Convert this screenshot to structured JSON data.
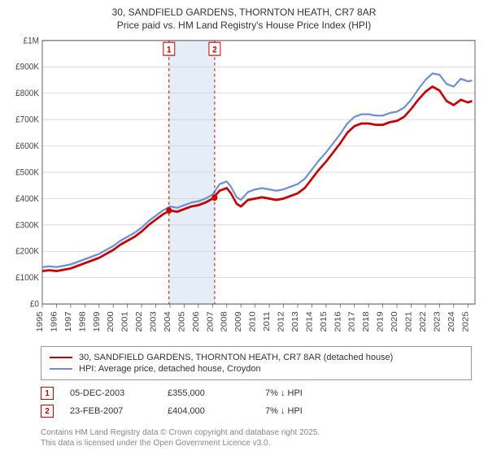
{
  "title_line1": "30, SANDFIELD GARDENS, THORNTON HEATH, CR7 8AR",
  "title_line2": "Price paid vs. HM Land Registry's House Price Index (HPI)",
  "chart": {
    "type": "line",
    "background_color": "#ffffff",
    "grid_color": "#cccccc",
    "border_color": "#666666",
    "x_min": 1995,
    "x_max": 2025.5,
    "y_min": 0,
    "y_max": 1000000,
    "y_ticks": [
      0,
      100000,
      200000,
      300000,
      400000,
      500000,
      600000,
      700000,
      800000,
      900000,
      1000000
    ],
    "y_tick_labels": [
      "£0",
      "£100K",
      "£200K",
      "£300K",
      "£400K",
      "£500K",
      "£600K",
      "£700K",
      "£800K",
      "£900K",
      "£1M"
    ],
    "x_ticks": [
      1995,
      1996,
      1997,
      1998,
      1999,
      2000,
      2001,
      2002,
      2003,
      2004,
      2005,
      2006,
      2007,
      2008,
      2009,
      2010,
      2011,
      2012,
      2013,
      2014,
      2015,
      2016,
      2017,
      2018,
      2019,
      2020,
      2021,
      2022,
      2023,
      2024,
      2025
    ],
    "highlight_band": {
      "x_start": 2003.9,
      "x_end": 2007.15,
      "fill": "#e5eef6"
    },
    "markers": [
      {
        "label": "1",
        "x": 2003.93,
        "y": 355000
      },
      {
        "label": "2",
        "x": 2007.15,
        "y": 404000
      }
    ],
    "marker_box_color": "#cc0000",
    "series": [
      {
        "name": "price_paid",
        "color": "#cc0000",
        "width": 2.5,
        "points": [
          [
            1995,
            125000
          ],
          [
            1995.5,
            128000
          ],
          [
            1996,
            125000
          ],
          [
            1996.5,
            130000
          ],
          [
            1997,
            135000
          ],
          [
            1997.5,
            145000
          ],
          [
            1998,
            155000
          ],
          [
            1998.5,
            165000
          ],
          [
            1999,
            175000
          ],
          [
            1999.5,
            190000
          ],
          [
            2000,
            205000
          ],
          [
            2000.5,
            225000
          ],
          [
            2001,
            240000
          ],
          [
            2001.5,
            255000
          ],
          [
            2002,
            275000
          ],
          [
            2002.5,
            300000
          ],
          [
            2003,
            320000
          ],
          [
            2003.5,
            340000
          ],
          [
            2004,
            355000
          ],
          [
            2004.5,
            350000
          ],
          [
            2005,
            360000
          ],
          [
            2005.5,
            370000
          ],
          [
            2006,
            375000
          ],
          [
            2006.5,
            385000
          ],
          [
            2007,
            400000
          ],
          [
            2007.5,
            430000
          ],
          [
            2008,
            440000
          ],
          [
            2008.3,
            420000
          ],
          [
            2008.7,
            380000
          ],
          [
            2009,
            370000
          ],
          [
            2009.5,
            395000
          ],
          [
            2010,
            400000
          ],
          [
            2010.5,
            405000
          ],
          [
            2011,
            400000
          ],
          [
            2011.5,
            395000
          ],
          [
            2012,
            400000
          ],
          [
            2012.5,
            410000
          ],
          [
            2013,
            420000
          ],
          [
            2013.5,
            440000
          ],
          [
            2014,
            475000
          ],
          [
            2014.5,
            510000
          ],
          [
            2015,
            540000
          ],
          [
            2015.5,
            575000
          ],
          [
            2016,
            610000
          ],
          [
            2016.5,
            650000
          ],
          [
            2017,
            675000
          ],
          [
            2017.5,
            685000
          ],
          [
            2018,
            685000
          ],
          [
            2018.5,
            680000
          ],
          [
            2019,
            680000
          ],
          [
            2019.5,
            690000
          ],
          [
            2020,
            695000
          ],
          [
            2020.5,
            710000
          ],
          [
            2021,
            740000
          ],
          [
            2021.5,
            775000
          ],
          [
            2022,
            805000
          ],
          [
            2022.5,
            825000
          ],
          [
            2023,
            810000
          ],
          [
            2023.5,
            770000
          ],
          [
            2024,
            755000
          ],
          [
            2024.5,
            775000
          ],
          [
            2025,
            765000
          ],
          [
            2025.3,
            770000
          ]
        ]
      },
      {
        "name": "hpi",
        "color": "#6b8fd4",
        "width": 2,
        "points": [
          [
            1995,
            140000
          ],
          [
            1995.5,
            143000
          ],
          [
            1996,
            140000
          ],
          [
            1996.5,
            145000
          ],
          [
            1997,
            150000
          ],
          [
            1997.5,
            160000
          ],
          [
            1998,
            170000
          ],
          [
            1998.5,
            180000
          ],
          [
            1999,
            190000
          ],
          [
            1999.5,
            205000
          ],
          [
            2000,
            220000
          ],
          [
            2000.5,
            240000
          ],
          [
            2001,
            255000
          ],
          [
            2001.5,
            270000
          ],
          [
            2002,
            290000
          ],
          [
            2002.5,
            315000
          ],
          [
            2003,
            335000
          ],
          [
            2003.5,
            355000
          ],
          [
            2004,
            370000
          ],
          [
            2004.5,
            365000
          ],
          [
            2005,
            375000
          ],
          [
            2005.5,
            385000
          ],
          [
            2006,
            390000
          ],
          [
            2006.5,
            400000
          ],
          [
            2007,
            415000
          ],
          [
            2007.5,
            455000
          ],
          [
            2008,
            465000
          ],
          [
            2008.3,
            445000
          ],
          [
            2008.7,
            405000
          ],
          [
            2009,
            395000
          ],
          [
            2009.5,
            425000
          ],
          [
            2010,
            435000
          ],
          [
            2010.5,
            440000
          ],
          [
            2011,
            435000
          ],
          [
            2011.5,
            430000
          ],
          [
            2012,
            435000
          ],
          [
            2012.5,
            445000
          ],
          [
            2013,
            455000
          ],
          [
            2013.5,
            475000
          ],
          [
            2014,
            510000
          ],
          [
            2014.5,
            545000
          ],
          [
            2015,
            575000
          ],
          [
            2015.5,
            610000
          ],
          [
            2016,
            645000
          ],
          [
            2016.5,
            685000
          ],
          [
            2017,
            710000
          ],
          [
            2017.5,
            720000
          ],
          [
            2018,
            720000
          ],
          [
            2018.5,
            715000
          ],
          [
            2019,
            715000
          ],
          [
            2019.5,
            725000
          ],
          [
            2020,
            730000
          ],
          [
            2020.5,
            745000
          ],
          [
            2021,
            775000
          ],
          [
            2021.5,
            815000
          ],
          [
            2022,
            850000
          ],
          [
            2022.5,
            875000
          ],
          [
            2023,
            870000
          ],
          [
            2023.5,
            835000
          ],
          [
            2024,
            825000
          ],
          [
            2024.5,
            855000
          ],
          [
            2025,
            845000
          ],
          [
            2025.3,
            848000
          ]
        ]
      }
    ]
  },
  "legend": {
    "series1": "30, SANDFIELD GARDENS, THORNTON HEATH, CR7 8AR (detached house)",
    "series2": "HPI: Average price, detached house, Croydon"
  },
  "sales": [
    {
      "marker": "1",
      "date": "05-DEC-2003",
      "price": "£355,000",
      "diff": "7% ↓ HPI"
    },
    {
      "marker": "2",
      "date": "23-FEB-2007",
      "price": "£404,000",
      "diff": "7% ↓ HPI"
    }
  ],
  "footer_line1": "Contains HM Land Registry data © Crown copyright and database right 2025.",
  "footer_line2": "This data is licensed under the Open Government Licence v3.0."
}
